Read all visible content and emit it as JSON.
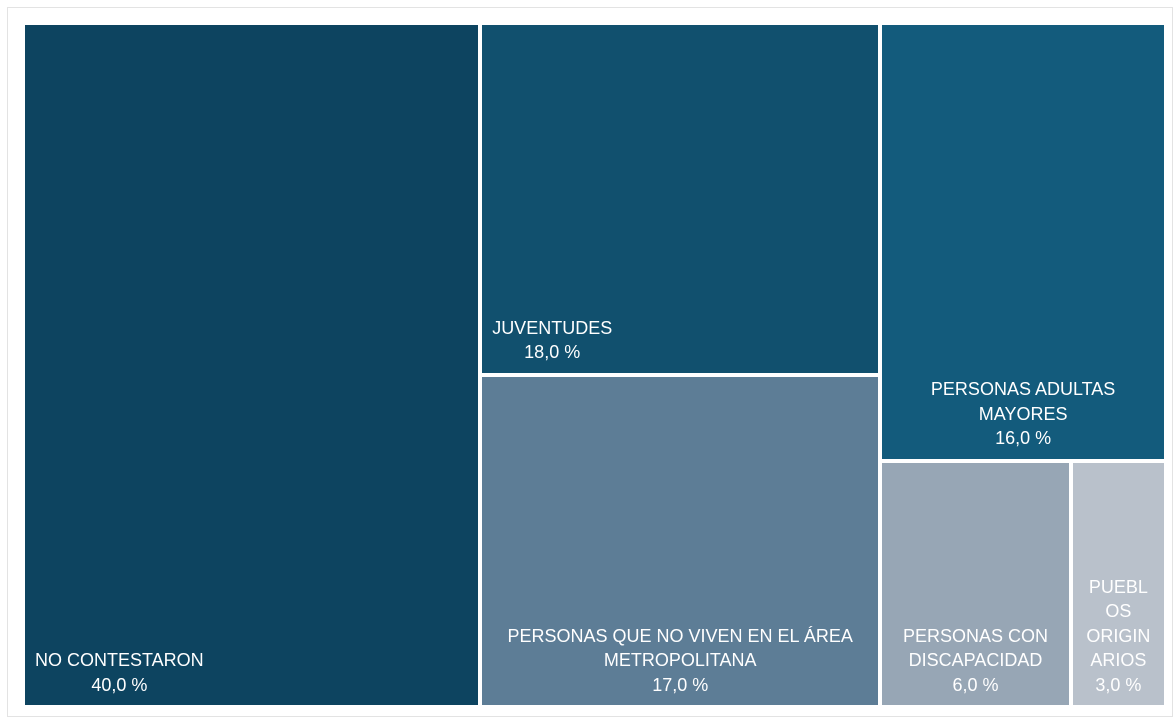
{
  "chart_data": {
    "type": "treemap",
    "categories": [
      "NO CONTESTARON",
      "JUVENTUDES",
      "PERSONAS QUE NO VIVEN EN EL ÁREA METROPOLITANA",
      "PERSONAS ADULTAS MAYORES",
      "PERSONAS CON DISCAPACIDAD",
      "PUEBLOS ORIGINARIOS"
    ],
    "values": [
      40,
      18,
      17,
      16,
      6,
      3
    ],
    "value_labels": [
      "40,0 %",
      "18,0 %",
      "17,0 %",
      "16,0 %",
      "6,0 %",
      "3,0 %"
    ],
    "colors": [
      "#0d4460",
      "#11506e",
      "#5d7d96",
      "#135b7c",
      "#97a6b5",
      "#b9c1cb"
    ]
  }
}
